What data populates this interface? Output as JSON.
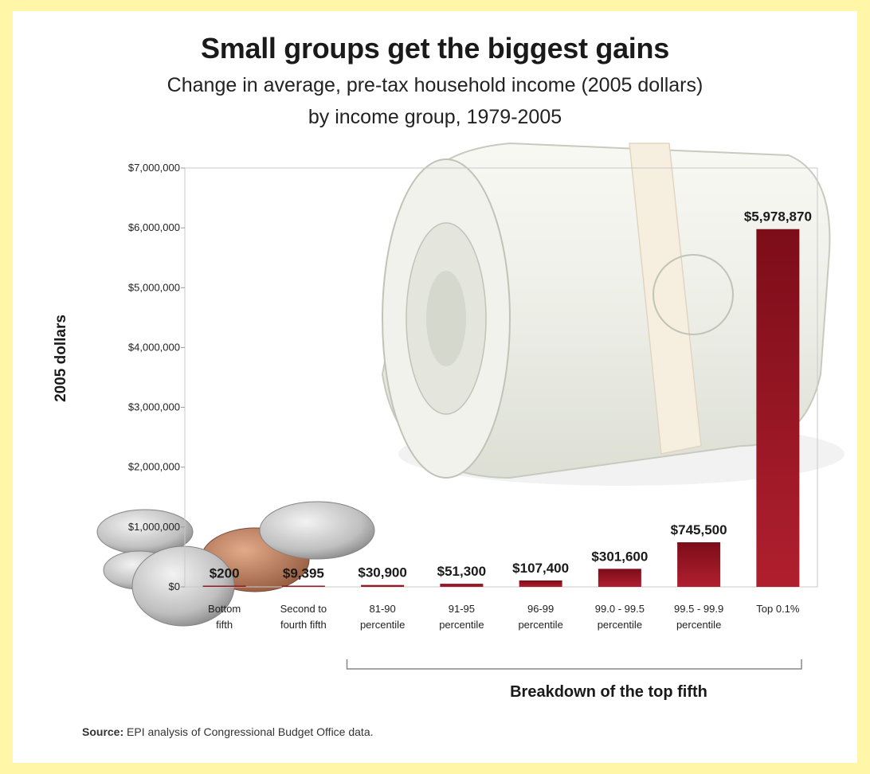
{
  "title": "Small groups get the biggest gains",
  "subtitle_line1": "Change in average, pre-tax household income (2005 dollars)",
  "subtitle_line2": "by income group, 1979-2005",
  "source_label": "Source:",
  "source_text": "EPI analysis of Congressional Budget Office data.",
  "colors": {
    "bar_dark": "#7c0d19",
    "bar_light": "#b01f2e",
    "background": "#fff6a8"
  },
  "decorations": [
    "money-roll-icon",
    "coins-icon"
  ],
  "chart_data": {
    "type": "bar",
    "title": "Small groups get the biggest gains",
    "ylabel": "2005 dollars",
    "xlabel": "Breakdown of the top fifth",
    "ylim": [
      0,
      7000000
    ],
    "yticks": [
      "$0",
      "$1,000,000",
      "$2,000,000",
      "$3,000,000",
      "$4,000,000",
      "$5,000,000",
      "$6,000,000",
      "$7,000,000"
    ],
    "categories": [
      [
        "Bottom",
        "fifth"
      ],
      [
        "Second to",
        "fourth fifth"
      ],
      [
        "81-90",
        "percentile"
      ],
      [
        "91-95",
        "percentile"
      ],
      [
        "96-99",
        "percentile"
      ],
      [
        "99.0 - 99.5",
        "percentile"
      ],
      [
        "99.5 - 99.9",
        "percentile"
      ],
      [
        "Top 0.1%"
      ]
    ],
    "values": [
      200,
      9395,
      30900,
      51300,
      107400,
      301600,
      745500,
      5978870
    ],
    "value_labels": [
      "$200",
      "$9,395",
      "$30,900",
      "$51,300",
      "$107,400",
      "$301,600",
      "$745,500",
      "$5,978,870"
    ],
    "grid": false,
    "bracket_covers_categories": [
      2,
      7
    ]
  }
}
